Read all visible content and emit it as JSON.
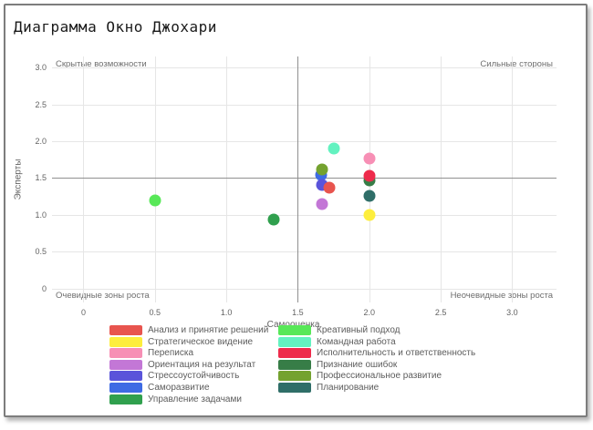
{
  "window": {
    "title": "Диаграмма Окно Джохари"
  },
  "chart_data": {
    "type": "scatter",
    "title": "Диаграмма Окно Джохари",
    "xlabel": "Самооценка",
    "ylabel": "Эксперты",
    "xlim": [
      -0.22,
      3.31
    ],
    "ylim": [
      -0.19,
      3.15
    ],
    "xticks": [
      0,
      0.5,
      1.0,
      1.5,
      2.0,
      2.5,
      3.0
    ],
    "yticks": [
      0,
      0.5,
      1.0,
      1.5,
      2.0,
      2.5,
      3.0
    ],
    "grid": true,
    "legend_position": "bottom",
    "quadrant_dividers": {
      "x": 1.5,
      "y": 1.5
    },
    "corner_labels": {
      "top_left": "Скрытые возможности",
      "top_right": "Сильные стороны",
      "bottom_left": "Очевидные зоны роста",
      "bottom_right": "Неочевидные зоны роста"
    },
    "series": [
      {
        "name": "Анализ и принятие решений",
        "color": "#e8544e",
        "x": 1.72,
        "y": 1.37
      },
      {
        "name": "Стратегическое видение",
        "color": "#fdee3d",
        "x": 2.0,
        "y": 1.0
      },
      {
        "name": "Переписка",
        "color": "#f78fb5",
        "x": 2.0,
        "y": 1.76
      },
      {
        "name": "Ориентация на результат",
        "color": "#c377d6",
        "x": 1.67,
        "y": 1.15
      },
      {
        "name": "Стрессоустойчивость",
        "color": "#5a54da",
        "x": 1.67,
        "y": 1.41
      },
      {
        "name": "Саморазвитие",
        "color": "#3e6be4",
        "x": 1.66,
        "y": 1.54
      },
      {
        "name": "Управление задачами",
        "color": "#30a04e",
        "x": 1.33,
        "y": 0.93
      },
      {
        "name": "Креативный подход",
        "color": "#58e858",
        "x": 0.5,
        "y": 1.19
      },
      {
        "name": "Командная работа",
        "color": "#63f2c0",
        "x": 1.75,
        "y": 1.9
      },
      {
        "name": "Исполнительность и ответственность",
        "color": "#ee2b4b",
        "x": 2.0,
        "y": 1.53
      },
      {
        "name": "Признание ошибок",
        "color": "#377d47",
        "x": 2.0,
        "y": 1.47
      },
      {
        "name": "Профессиональное развитие",
        "color": "#74a22f",
        "x": 1.67,
        "y": 1.62
      },
      {
        "name": "Планирование",
        "color": "#2f6e68",
        "x": 2.0,
        "y": 1.26
      }
    ],
    "legend_columns": [
      7,
      6
    ],
    "draw_order": [
      "Переписка",
      "Командная работа",
      "Креативный подход",
      "Управление задачами",
      "Ориентация на результат",
      "Планирование",
      "Стратегическое видение",
      "Саморазвитие",
      "Профессиональное развитие",
      "Признание ошибок",
      "Исполнительность и ответственность",
      "Стрессоустойчивость",
      "Анализ и принятие решений"
    ],
    "marker_size": 13
  }
}
